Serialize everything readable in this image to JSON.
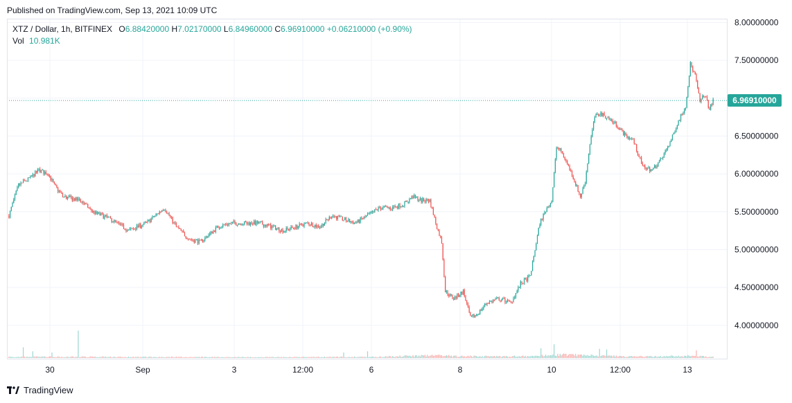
{
  "header": {
    "published": "Published on TradingView.com, Sep 13, 2021 10:09 UTC"
  },
  "legend": {
    "symbol": "XTZ / Dollar, 1h, BITFINEX",
    "open_label": "O",
    "open": "6.88420000",
    "high_label": "H",
    "high": "7.02170000",
    "low_label": "L",
    "low": "6.84960000",
    "close_label": "C",
    "close": "6.96910000",
    "change": "+0.06210000 (+0.90%)",
    "vol_label": "Vol",
    "vol": "10.981K"
  },
  "price_tag": "6.96910000",
  "footer": {
    "brand": "TradingView"
  },
  "colors": {
    "up": "#26a69a",
    "down": "#ef5350",
    "grid": "#f0f3fa"
  },
  "chart_data": {
    "type": "candlestick",
    "y_ticks": [
      "8.00000000",
      "7.50000000",
      "7.00000000",
      "6.50000000",
      "6.00000000",
      "5.50000000",
      "5.00000000",
      "4.50000000",
      "4.00000000"
    ],
    "ylim": [
      3.55,
      8.05
    ],
    "x_ticks": [
      "30",
      "Sep",
      "3",
      "12:00",
      "6",
      "8",
      "10",
      "12:00",
      "13"
    ],
    "last_price": 6.9691,
    "price_path": [
      [
        0,
        5.45
      ],
      [
        8,
        5.85
      ],
      [
        18,
        5.95
      ],
      [
        25,
        6.05
      ],
      [
        33,
        6.0
      ],
      [
        38,
        5.85
      ],
      [
        45,
        5.7
      ],
      [
        60,
        5.65
      ],
      [
        70,
        5.5
      ],
      [
        85,
        5.4
      ],
      [
        100,
        5.25
      ],
      [
        115,
        5.35
      ],
      [
        130,
        5.55
      ],
      [
        140,
        5.3
      ],
      [
        150,
        5.15
      ],
      [
        160,
        5.1
      ],
      [
        175,
        5.3
      ],
      [
        185,
        5.35
      ],
      [
        200,
        5.35
      ],
      [
        210,
        5.35
      ],
      [
        220,
        5.3
      ],
      [
        230,
        5.25
      ],
      [
        240,
        5.3
      ],
      [
        250,
        5.35
      ],
      [
        260,
        5.3
      ],
      [
        270,
        5.45
      ],
      [
        280,
        5.4
      ],
      [
        290,
        5.35
      ],
      [
        300,
        5.45
      ],
      [
        310,
        5.55
      ],
      [
        320,
        5.55
      ],
      [
        330,
        5.6
      ],
      [
        338,
        5.7
      ],
      [
        345,
        5.65
      ],
      [
        352,
        5.65
      ],
      [
        358,
        5.3
      ],
      [
        362,
        5.1
      ],
      [
        365,
        4.45
      ],
      [
        372,
        4.35
      ],
      [
        380,
        4.45
      ],
      [
        386,
        4.1
      ],
      [
        392,
        4.15
      ],
      [
        400,
        4.3
      ],
      [
        410,
        4.35
      ],
      [
        420,
        4.3
      ],
      [
        428,
        4.55
      ],
      [
        436,
        4.65
      ],
      [
        444,
        5.35
      ],
      [
        450,
        5.55
      ],
      [
        454,
        5.65
      ],
      [
        458,
        6.35
      ],
      [
        462,
        6.3
      ],
      [
        468,
        6.1
      ],
      [
        472,
        5.95
      ],
      [
        478,
        5.7
      ],
      [
        482,
        5.9
      ],
      [
        486,
        6.4
      ],
      [
        490,
        6.75
      ],
      [
        494,
        6.8
      ],
      [
        500,
        6.75
      ],
      [
        508,
        6.65
      ],
      [
        516,
        6.5
      ],
      [
        522,
        6.45
      ],
      [
        530,
        6.1
      ],
      [
        538,
        6.05
      ],
      [
        546,
        6.2
      ],
      [
        554,
        6.45
      ],
      [
        560,
        6.7
      ],
      [
        566,
        6.9
      ],
      [
        570,
        7.45
      ],
      [
        574,
        7.3
      ],
      [
        578,
        6.95
      ],
      [
        582,
        7.05
      ],
      [
        586,
        6.85
      ],
      [
        589,
        6.97
      ]
    ],
    "volume_path": [
      [
        0,
        0.06
      ],
      [
        100,
        0.05
      ],
      [
        200,
        0.04
      ],
      [
        300,
        0.05
      ],
      [
        360,
        0.12
      ],
      [
        380,
        0.08
      ],
      [
        440,
        0.08
      ],
      [
        460,
        0.16
      ],
      [
        520,
        0.07
      ],
      [
        570,
        0.1
      ],
      [
        589,
        0.05
      ]
    ],
    "volume_spikes": [
      [
        12,
        0.35
      ],
      [
        20,
        0.22
      ],
      [
        36,
        0.18
      ],
      [
        58,
        0.9
      ],
      [
        280,
        0.18
      ],
      [
        300,
        0.22
      ],
      [
        445,
        0.32
      ],
      [
        456,
        0.45
      ],
      [
        494,
        0.3
      ],
      [
        500,
        0.28
      ],
      [
        575,
        0.25
      ]
    ]
  }
}
